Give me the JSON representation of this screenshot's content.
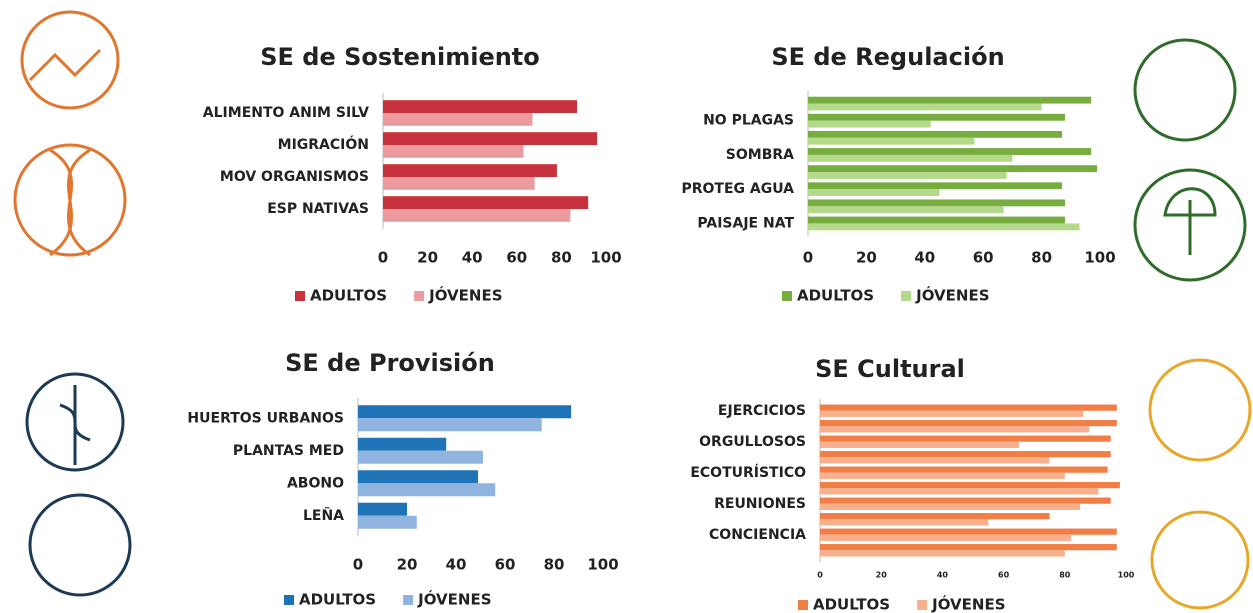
{
  "chart_data": [
    {
      "type": "bar",
      "orientation": "horizontal",
      "title": "SE de Sostenimiento",
      "categories": [
        "ALIMENTO ANIM SILV",
        "MIGRACIÓN",
        "MOV ORGANISMOS",
        "ESP  NATIVAS"
      ],
      "series": [
        {
          "name": "ADULTOS",
          "color": "#c8323c",
          "values": [
            87,
            96,
            78,
            92
          ]
        },
        {
          "name": "JÓVENES",
          "color": "#eb9aa0",
          "values": [
            67,
            63,
            68,
            84
          ]
        }
      ],
      "xlim": [
        0,
        100
      ],
      "xticks": [
        0,
        20,
        40,
        60,
        80,
        100
      ]
    },
    {
      "type": "bar",
      "orientation": "horizontal",
      "title": "SE de Regulación",
      "categories": [
        null,
        "NO PLAGAS",
        null,
        "SOMBRA",
        null,
        "PROTEG AGUA",
        null,
        "PAISAJE NAT"
      ],
      "series": [
        {
          "name": "ADULTOS",
          "color": "#77ac3f",
          "values": [
            97,
            88,
            87,
            97,
            99,
            87,
            88,
            88
          ]
        },
        {
          "name": "JÓVENES",
          "color": "#b5d98a",
          "values": [
            80,
            42,
            57,
            70,
            68,
            45,
            67,
            93
          ]
        }
      ],
      "xlim": [
        0,
        100
      ],
      "xticks": [
        0,
        20,
        40,
        60,
        80,
        100
      ]
    },
    {
      "type": "bar",
      "orientation": "horizontal",
      "title": "SE de Provisión",
      "categories": [
        "HUERTOS URBANOS",
        "PLANTAS MED",
        "ABONO",
        "LEÑA"
      ],
      "series": [
        {
          "name": "ADULTOS",
          "color": "#1f74b8",
          "values": [
            87,
            36,
            49,
            20
          ]
        },
        {
          "name": "JÓVENES",
          "color": "#8fb4e0",
          "values": [
            75,
            51,
            56,
            24
          ]
        }
      ],
      "xlim": [
        0,
        100
      ],
      "xticks": [
        0,
        20,
        40,
        60,
        80,
        100
      ]
    },
    {
      "type": "bar",
      "orientation": "horizontal",
      "title": "SE Cultural",
      "categories": [
        "EJERCICIOS",
        null,
        "ORGULLOSOS",
        null,
        "ECOTURÍSTICO",
        null,
        "REUNIONES",
        null,
        "CONCIENCIA",
        null
      ],
      "series": [
        {
          "name": "ADULTOS",
          "color": "#f07e45",
          "values": [
            97,
            97,
            95,
            95,
            94,
            98,
            95,
            75,
            97,
            97
          ]
        },
        {
          "name": "JÓVENES",
          "color": "#f6b08e",
          "values": [
            86,
            88,
            65,
            75,
            80,
            91,
            85,
            55,
            82,
            80
          ]
        }
      ],
      "xlim": [
        0,
        100
      ],
      "xticks": [
        0,
        20,
        40,
        60,
        80,
        100
      ]
    }
  ]
}
